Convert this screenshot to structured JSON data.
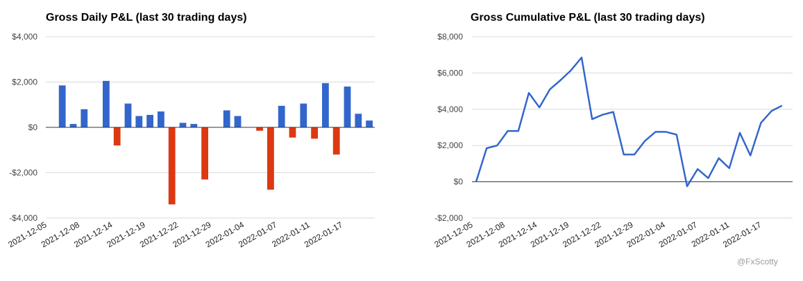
{
  "chart_data": [
    {
      "type": "bar",
      "title": "Gross Daily P&L (last 30 trading days)",
      "xlabel": "",
      "ylabel": "",
      "ylim": [
        -4000,
        4000
      ],
      "ytick_values": [
        -4000,
        -2000,
        0,
        2000,
        4000
      ],
      "ytick_labels": [
        "-$4,000",
        "-$2,000",
        "$0",
        "$2,000",
        "$4,000"
      ],
      "xtick_labels": [
        "2021-12-05",
        "2021-12-08",
        "2021-12-14",
        "2021-12-19",
        "2021-12-22",
        "2021-12-29",
        "2022-01-04",
        "2022-01-07",
        "2022-01-11",
        "2022-01-17"
      ],
      "positive_color": "#3366cc",
      "negative_color": "#dc3912",
      "values": [
        0,
        1850,
        150,
        800,
        0,
        2050,
        -800,
        1050,
        500,
        550,
        700,
        -3400,
        200,
        150,
        -2300,
        0,
        750,
        500,
        0,
        -150,
        -2750,
        950,
        -450,
        1050,
        -500,
        1950,
        -1200,
        1800,
        600,
        300
      ],
      "grid": true
    },
    {
      "type": "line",
      "title": "Gross Cumulative P&L (last 30 trading days)",
      "xlabel": "",
      "ylabel": "",
      "ylim": [
        -2000,
        8000
      ],
      "ytick_values": [
        -2000,
        0,
        2000,
        4000,
        6000,
        8000
      ],
      "ytick_labels": [
        "-$2,000",
        "$0",
        "$2,000",
        "$4,000",
        "$6,000",
        "$8,000"
      ],
      "xtick_labels": [
        "2021-12-05",
        "2021-12-08",
        "2021-12-14",
        "2021-12-19",
        "2021-12-22",
        "2021-12-29",
        "2022-01-04",
        "2022-01-07",
        "2022-01-11",
        "2022-01-17"
      ],
      "line_color": "#3366cc",
      "values": [
        0,
        1850,
        2000,
        2800,
        2800,
        4900,
        4100,
        5100,
        5600,
        6150,
        6850,
        3450,
        3700,
        3850,
        1500,
        1500,
        2250,
        2750,
        2750,
        2600,
        -250,
        700,
        200,
        1300,
        750,
        2700,
        1450,
        3250,
        3900,
        4200
      ],
      "grid": true
    }
  ],
  "watermark": "@FxScotty"
}
